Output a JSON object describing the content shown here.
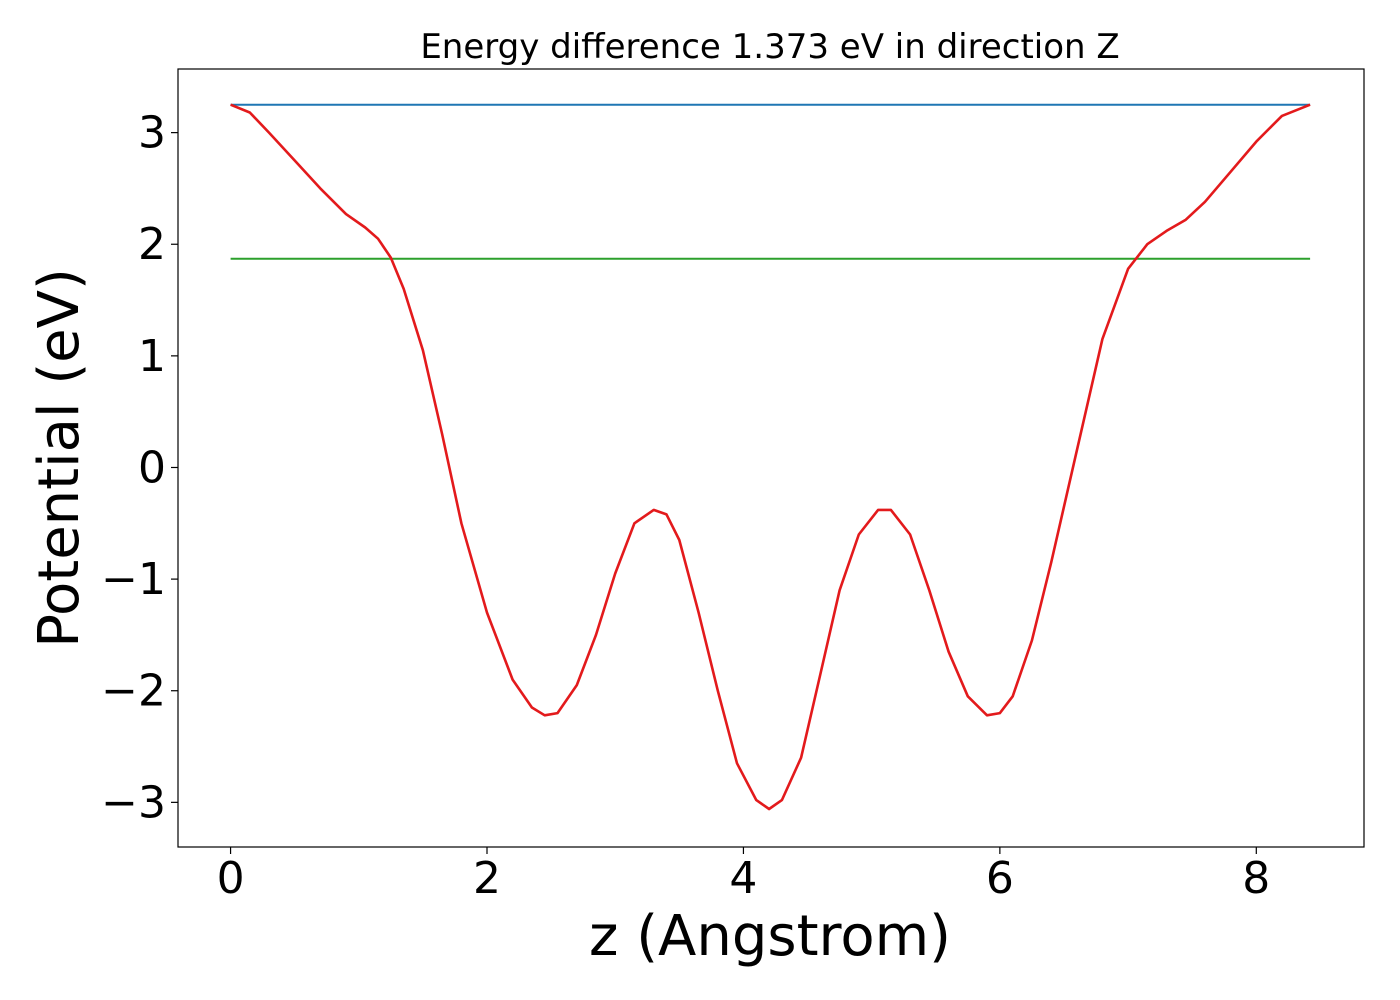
{
  "chart_data": {
    "type": "line",
    "title": "Energy difference 1.373 eV in direction Z",
    "xlabel": "z (Angstrom)",
    "ylabel": "Potential (eV)",
    "xlim": [
      -0.41,
      8.84
    ],
    "ylim": [
      -3.4,
      3.57
    ],
    "xticks": [
      0,
      2,
      4,
      6,
      8
    ],
    "xtick_labels": [
      "0",
      "2",
      "4",
      "6",
      "8"
    ],
    "yticks": [
      -3,
      -2,
      -1,
      0,
      1,
      2,
      3
    ],
    "ytick_labels": [
      "−3",
      "−2",
      "−1",
      "0",
      "1",
      "2",
      "3"
    ],
    "grid": false,
    "series": [
      {
        "color": "#1f77b4",
        "x": [
          0,
          8.42
        ],
        "y": [
          3.25,
          3.25
        ]
      },
      {
        "color": "#2ca02c",
        "x": [
          0,
          8.42
        ],
        "y": [
          1.87,
          1.87
        ]
      },
      {
        "color": "#e31a1c",
        "x": [
          0,
          0.15,
          0.3,
          0.5,
          0.7,
          0.9,
          1.05,
          1.15,
          1.25,
          1.35,
          1.5,
          1.65,
          1.8,
          2.0,
          2.2,
          2.35,
          2.45,
          2.55,
          2.7,
          2.85,
          3.0,
          3.15,
          3.3,
          3.4,
          3.5,
          3.65,
          3.8,
          3.95,
          4.1,
          4.2,
          4.3,
          4.45,
          4.6,
          4.75,
          4.9,
          5.05,
          5.15,
          5.3,
          5.45,
          5.6,
          5.75,
          5.9,
          6.0,
          6.1,
          6.25,
          6.4,
          6.6,
          6.8,
          7.0,
          7.15,
          7.3,
          7.45,
          7.6,
          7.8,
          8.0,
          8.2,
          8.42
        ],
        "y": [
          3.25,
          3.18,
          3.0,
          2.75,
          2.5,
          2.27,
          2.15,
          2.05,
          1.88,
          1.6,
          1.05,
          0.3,
          -0.5,
          -1.3,
          -1.9,
          -2.15,
          -2.22,
          -2.2,
          -1.95,
          -1.5,
          -0.95,
          -0.5,
          -0.38,
          -0.42,
          -0.65,
          -1.3,
          -2.0,
          -2.65,
          -2.98,
          -3.06,
          -2.98,
          -2.6,
          -1.85,
          -1.1,
          -0.6,
          -0.38,
          -0.38,
          -0.6,
          -1.1,
          -1.65,
          -2.05,
          -2.22,
          -2.2,
          -2.05,
          -1.55,
          -0.85,
          0.15,
          1.15,
          1.78,
          2.0,
          2.12,
          2.22,
          2.38,
          2.65,
          2.92,
          3.15,
          3.25
        ]
      }
    ]
  }
}
